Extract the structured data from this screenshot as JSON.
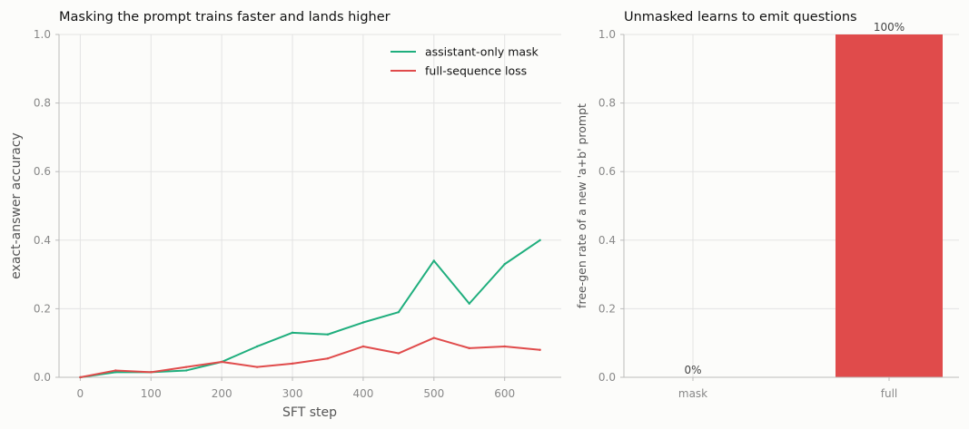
{
  "chart_data": [
    {
      "type": "line",
      "title": "Masking the prompt trains faster and lands higher",
      "xlabel": "SFT step",
      "ylabel": "exact-answer accuracy",
      "xlim": [
        -30,
        680
      ],
      "ylim": [
        0,
        1.0
      ],
      "xticks": [
        0,
        100,
        200,
        300,
        400,
        500,
        600
      ],
      "yticks": [
        0.0,
        0.2,
        0.4,
        0.6,
        0.8,
        1.0
      ],
      "xtick_labels": [
        "0",
        "100",
        "200",
        "300",
        "400",
        "500",
        "600"
      ],
      "ytick_labels": [
        "0.0",
        "0.2",
        "0.4",
        "0.6",
        "0.8",
        "1.0"
      ],
      "grid": true,
      "legend": "top-right",
      "x": [
        0,
        50,
        100,
        150,
        200,
        250,
        300,
        350,
        400,
        450,
        500,
        550,
        600,
        650
      ],
      "series": [
        {
          "name": "assistant-only mask",
          "color": "#1fae7d",
          "values": [
            0.0,
            0.015,
            0.015,
            0.02,
            0.045,
            0.09,
            0.13,
            0.125,
            0.16,
            0.19,
            0.34,
            0.215,
            0.33,
            0.4
          ]
        },
        {
          "name": "full-sequence loss",
          "color": "#e04b4b",
          "values": [
            0.0,
            0.02,
            0.015,
            0.03,
            0.045,
            0.03,
            0.04,
            0.055,
            0.09,
            0.07,
            0.115,
            0.085,
            0.09,
            0.08
          ]
        }
      ]
    },
    {
      "type": "bar",
      "title": "Unmasked learns to emit questions",
      "xlabel": "",
      "ylabel": "free-gen rate of a new 'a+b' prompt",
      "ylim": [
        0,
        1.0
      ],
      "yticks": [
        0.0,
        0.2,
        0.4,
        0.6,
        0.8,
        1.0
      ],
      "ytick_labels": [
        "0.0",
        "0.2",
        "0.4",
        "0.6",
        "0.8",
        "1.0"
      ],
      "grid": true,
      "categories": [
        "mask",
        "full"
      ],
      "values": [
        0.0,
        1.0
      ],
      "value_labels": [
        "0%",
        "100%"
      ],
      "colors": [
        "#1fae7d",
        "#e04b4b"
      ]
    }
  ]
}
